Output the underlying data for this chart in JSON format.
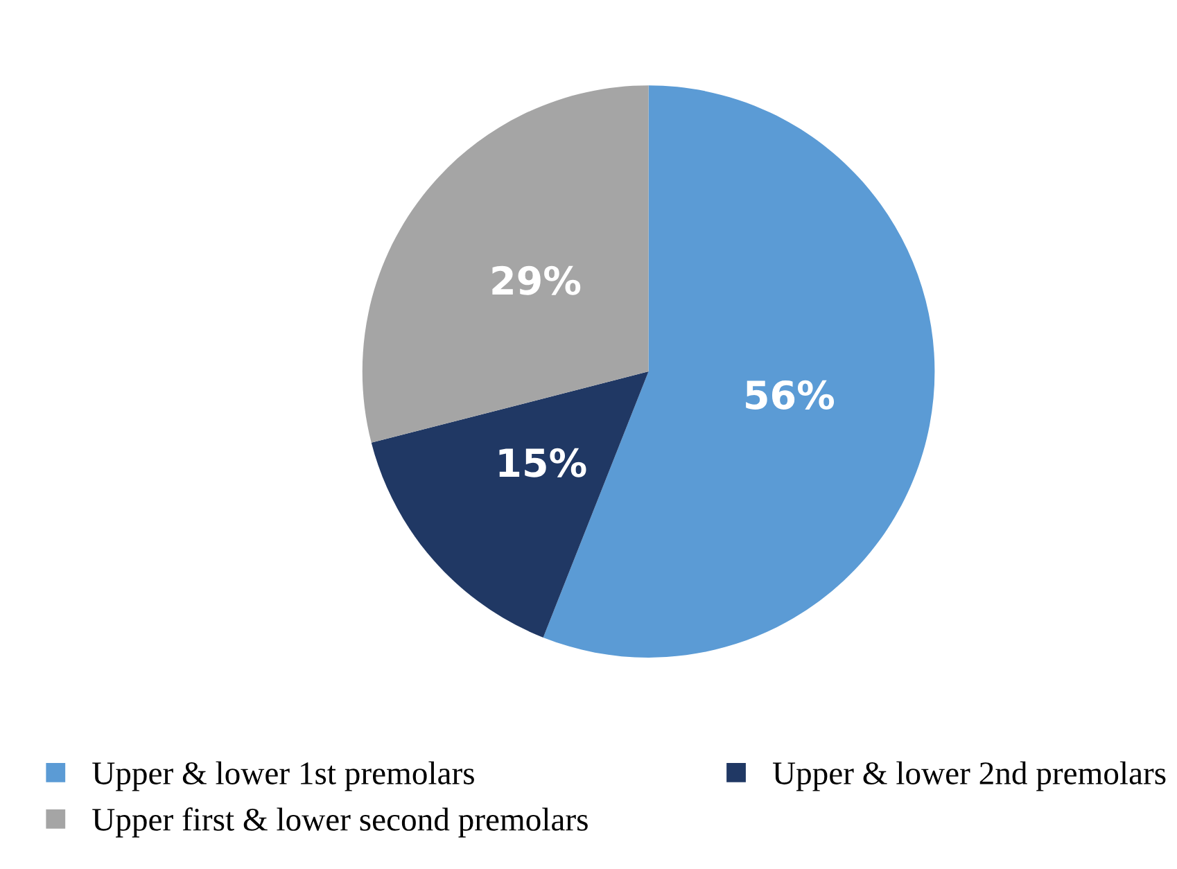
{
  "chart_data": {
    "type": "pie",
    "categories": [
      "Upper & lower 1st premolars",
      "Upper & lower 2nd premolars",
      "Upper first & lower second premolars"
    ],
    "values": [
      56,
      15,
      29
    ],
    "colors": [
      "#5b9bd5",
      "#203864",
      "#a5a5a5"
    ],
    "value_labels": [
      "56%",
      "15%",
      "29%"
    ],
    "legend": "bottom"
  }
}
